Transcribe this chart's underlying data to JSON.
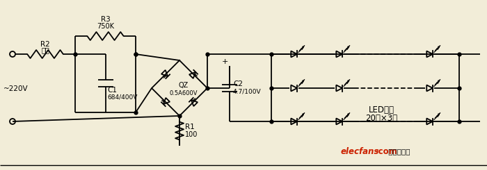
{
  "bg_color": "#f2edd8",
  "line_color": "#000000",
  "line_width": 1.3,
  "label_220v": "~220V",
  "label_R2": "R2",
  "label_R2b": "未用",
  "label_R3": "R3",
  "label_R3b": "750K",
  "label_C1": "C1",
  "label_C1b": "684/400V",
  "label_QZ": "QZ",
  "label_QZb": "0.5A600V",
  "label_R1": "R1",
  "label_R1b": "100",
  "label_C2": "C2",
  "label_C2b": "4.7/100V",
  "label_LED": "LED白光",
  "label_LEDb": "20只×3路",
  "elecfans_red": "#cc2200",
  "elecfans_black": "#111111",
  "label_elecfans1": "elecfans",
  "label_elecfans2": "·com",
  "label_elecfans3": " 电子发烧友"
}
